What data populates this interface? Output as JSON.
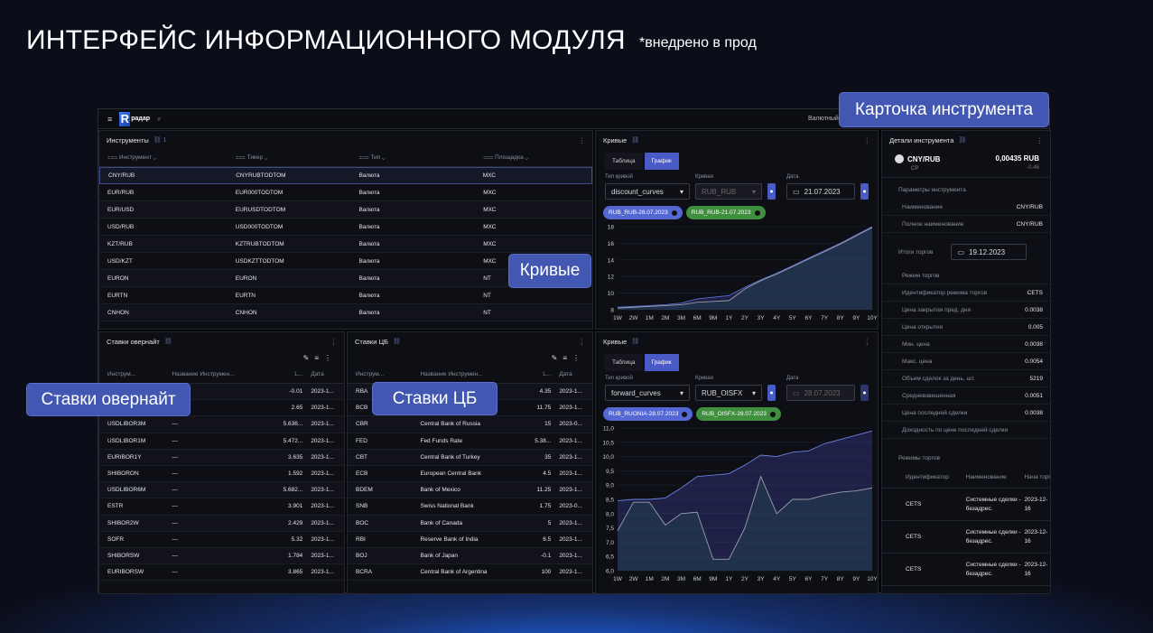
{
  "page": {
    "title": "ИНТЕРФЕЙС ИНФОРМАЦИОННОГО МОДУЛЯ",
    "subtitle": "*внедрено в прод"
  },
  "callouts": {
    "card": "Карточка инструмента",
    "curves": "Кривые",
    "overnight": "Ставки овернайт",
    "cb": "Ставки ЦБ"
  },
  "topbar": {
    "logo_letter": "R",
    "logo_text": "радар",
    "right_text": "Валютный"
  },
  "colors": {
    "accent": "#4a5bc7",
    "green": "#3f8f3f",
    "bg": "#0b0d18"
  },
  "instruments": {
    "title": "Инструменты",
    "link_count": "1",
    "columns": [
      "Инструмент",
      "Тикер",
      "Тип",
      "Площадка"
    ],
    "rows": [
      [
        "CNY/RUB",
        "CNYRUBTODTOM",
        "Валюта",
        "МХС"
      ],
      [
        "EUR/RUB",
        "EUR000TODTOM",
        "Валюта",
        "МХС"
      ],
      [
        "EUR/USD",
        "EURUSDTODTOM",
        "Валюта",
        "МХС"
      ],
      [
        "USD/RUB",
        "USD000TODTOM",
        "Валюта",
        "МХС"
      ],
      [
        "KZT/RUB",
        "KZTRUBTODTOM",
        "Валюта",
        "МХС"
      ],
      [
        "USD/KZT",
        "USDKZTTODTOM",
        "Валюта",
        "МХС"
      ],
      [
        "EURON",
        "EURON",
        "Валюта",
        "NT"
      ],
      [
        "EURTN",
        "EURTN",
        "Валюта",
        "NT"
      ],
      [
        "CNHON",
        "CNHON",
        "Валюта",
        "NT"
      ]
    ]
  },
  "overnight": {
    "title": "Ставки овернайт",
    "columns": [
      "Инструм...",
      "Название Инструмен...",
      "L...",
      "Дата"
    ],
    "rows": [
      [
        "",
        "",
        "-0.01",
        "2023-1..."
      ],
      [
        "",
        "",
        "2.65",
        "2023-1..."
      ],
      [
        "USDLIBOR3M",
        "—",
        "5.636...",
        "2023-1..."
      ],
      [
        "USDLIBOR1M",
        "—",
        "5.472...",
        "2023-1..."
      ],
      [
        "EURIBOR1Y",
        "—",
        "3.635",
        "2023-1..."
      ],
      [
        "SHIBORON",
        "—",
        "1.592",
        "2023-1..."
      ],
      [
        "USDLIBOR6M",
        "—",
        "5.682...",
        "2023-1..."
      ],
      [
        "ESTR",
        "—",
        "3.901",
        "2023-1..."
      ],
      [
        "SHIBOR2W",
        "—",
        "2.429",
        "2023-1..."
      ],
      [
        "SOFR",
        "—",
        "5.32",
        "2023-1..."
      ],
      [
        "SHIBORSW",
        "—",
        "1.784",
        "2023-1..."
      ],
      [
        "EURIBORSW",
        "—",
        "3.865",
        "2023-1..."
      ]
    ]
  },
  "cb": {
    "title": "Ставки ЦБ",
    "columns": [
      "Инструм...",
      "Название Инструмен...",
      "L...",
      "Дата"
    ],
    "rows": [
      [
        "RBA",
        "",
        "4.35",
        "2023-1..."
      ],
      [
        "BCB",
        "",
        "11.75",
        "2023-1..."
      ],
      [
        "CBR",
        "Central Bank of Russia",
        "15",
        "2023-0..."
      ],
      [
        "FED",
        "Fed Funds Rate",
        "5.38...",
        "2023-1..."
      ],
      [
        "CBT",
        "Central Bank of Turkey",
        "35",
        "2023-1..."
      ],
      [
        "ECB",
        "European Central Bank",
        "4.5",
        "2023-1..."
      ],
      [
        "BDEM",
        "Bank of Mexico",
        "11.25",
        "2023-1..."
      ],
      [
        "SNB",
        "Swiss National Bank",
        "1.75",
        "2023-0..."
      ],
      [
        "BOC",
        "Bank of Canada",
        "5",
        "2023-1..."
      ],
      [
        "RBI",
        "Reserve Bank of India",
        "6.5",
        "2023-1..."
      ],
      [
        "BOJ",
        "Bank of Japan",
        "-0.1",
        "2023-1..."
      ],
      [
        "BCRA",
        "Central Bank of Argentina",
        "100",
        "2023-1..."
      ]
    ]
  },
  "curves_top": {
    "title": "Кривые",
    "tab_table": "Таблица",
    "tab_chart": "График",
    "label_type": "Тип кривой",
    "label_curve": "Кривая",
    "label_date": "Дата",
    "type_value": "discount_curves",
    "curve_value": "RUB_RUB",
    "date_value": "21.07.2023",
    "chips": [
      "RUB_RUB-28.07.2023",
      "RUB_RUB-21.07.2023"
    ]
  },
  "curves_bottom": {
    "title": "Кривые",
    "tab_table": "Таблица",
    "tab_chart": "График",
    "label_type": "Тип кривой",
    "label_curve": "Кривая",
    "label_date": "Дата",
    "type_value": "forward_curves",
    "curve_value": "RUB_OISFX",
    "date_value": "28.07.2023",
    "chips": [
      "RUB_RUONIA-28.07.2023",
      "RUB_OISFX-28.07.2023"
    ]
  },
  "chart_data": [
    {
      "type": "area",
      "categories": [
        "1W",
        "2W",
        "1M",
        "2M",
        "3M",
        "6M",
        "9M",
        "1Y",
        "2Y",
        "3Y",
        "4Y",
        "5Y",
        "6Y",
        "7Y",
        "8Y",
        "9Y",
        "10Y"
      ],
      "ylim": [
        8,
        18
      ],
      "yticks": [
        "8",
        "10",
        "12",
        "14",
        "16",
        "18"
      ],
      "grid": true,
      "series": [
        {
          "name": "RUB_RUB-28.07.2023",
          "color": "#5a6fd8",
          "values": [
            8.3,
            8.4,
            8.5,
            8.6,
            8.8,
            9.3,
            9.5,
            9.7,
            10.7,
            11.6,
            12.4,
            13.3,
            14.2,
            15.1,
            16.0,
            17.0,
            18.0
          ]
        },
        {
          "name": "RUB_RUB-21.07.2023",
          "color": "#9aa0aa",
          "values": [
            8.2,
            8.3,
            8.4,
            8.5,
            8.6,
            8.9,
            9.0,
            9.1,
            10.5,
            11.5,
            12.3,
            13.2,
            14.1,
            15.0,
            15.9,
            16.9,
            17.9
          ]
        }
      ]
    },
    {
      "type": "area",
      "categories": [
        "1W",
        "2W",
        "1M",
        "2M",
        "3M",
        "6M",
        "9M",
        "1Y",
        "2Y",
        "3Y",
        "4Y",
        "5Y",
        "6Y",
        "7Y",
        "8Y",
        "9Y",
        "10Y"
      ],
      "ylim": [
        6,
        11
      ],
      "yticks": [
        "6,0",
        "6,5",
        "7,0",
        "7,5",
        "8,0",
        "8,5",
        "9,0",
        "9,5",
        "10,0",
        "10,5",
        "11,0"
      ],
      "grid": true,
      "series": [
        {
          "name": "RUB_RUONIA-28.07.2023",
          "color": "#6b7fe0",
          "values": [
            8.45,
            8.5,
            8.5,
            8.55,
            8.9,
            9.3,
            9.35,
            9.4,
            9.7,
            10.05,
            10.0,
            10.15,
            10.2,
            10.45,
            10.6,
            10.75,
            10.9
          ]
        },
        {
          "name": "RUB_OISFX-28.07.2023",
          "color": "#9aa0aa",
          "values": [
            7.4,
            8.4,
            8.4,
            7.6,
            8.0,
            8.05,
            6.4,
            6.4,
            7.5,
            9.3,
            8.0,
            8.5,
            8.5,
            8.65,
            8.75,
            8.8,
            8.9
          ]
        }
      ]
    }
  ],
  "details": {
    "title": "Детали инструмента",
    "name": "CNY/RUB",
    "sub": "СР",
    "price": "0,00435 RUB",
    "change": "-0.46",
    "params_title": "Параметры инструмента",
    "params": [
      [
        "Наименование",
        "CNY/RUB"
      ],
      [
        "Полное наименование",
        "CNY/RUB"
      ]
    ],
    "results_label": "Итоги торгов",
    "results_date": "19.12.2023",
    "mode_label": "Режим торгов",
    "fields": [
      [
        "Идентификатор режима торгов",
        "CETS"
      ],
      [
        "Цена закрытия пред. дня",
        "0.0038"
      ],
      [
        "Цена открытия",
        "0.005"
      ],
      [
        "Мин. цена",
        "0.0038"
      ],
      [
        "Макс. цена",
        "0.0054"
      ],
      [
        "Объем сделок за день, шт.",
        "5219"
      ],
      [
        "Средневзвешенная",
        "0.0051"
      ],
      [
        "Цена последней сделки",
        "0.0038"
      ],
      [
        "Доходность по цене последней сделки",
        ""
      ]
    ],
    "modes_title": "Режимы торгов",
    "modes_columns": [
      "Идентификатор",
      "Наименование",
      "Нача торго"
    ],
    "modes_rows": [
      [
        "CETS",
        "Системные сделки - безадрес.",
        "2023-12-16"
      ],
      [
        "CETS",
        "Системные сделки - безадрес.",
        "2023-12-16"
      ],
      [
        "CETS",
        "Системные сделки - безадрес.",
        "2023-12-16"
      ]
    ]
  }
}
